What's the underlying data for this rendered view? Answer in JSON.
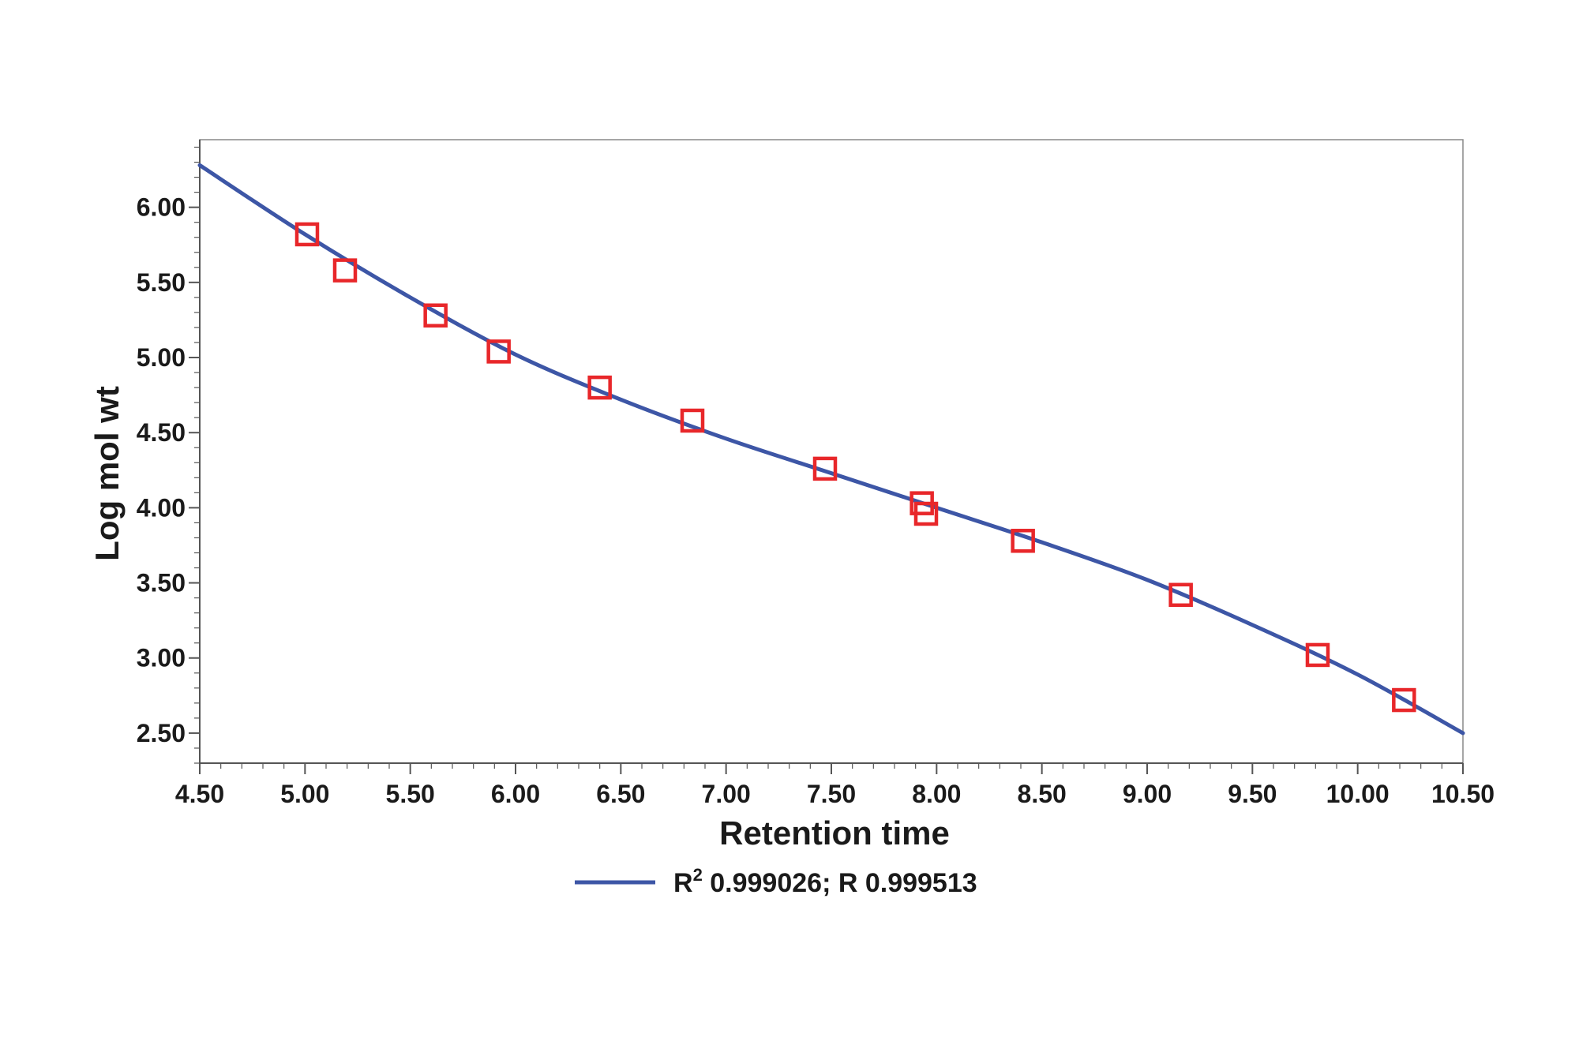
{
  "chart_data": {
    "type": "scatter",
    "xlabel": "Retention time",
    "ylabel": "Log mol wt",
    "xlim": [
      4.5,
      10.5
    ],
    "ylim": [
      2.3,
      6.45
    ],
    "xticks": [
      "4.50",
      "5.00",
      "5.50",
      "6.00",
      "6.50",
      "7.00",
      "7.50",
      "8.00",
      "8.50",
      "9.00",
      "9.50",
      "10.00",
      "10.50"
    ],
    "yticks": [
      "2.50",
      "3.00",
      "3.50",
      "4.00",
      "4.50",
      "5.00",
      "5.50",
      "6.00"
    ],
    "series": [
      {
        "kind": "markers",
        "marker": "open-square",
        "color": "#e8272a",
        "points": [
          {
            "x": 5.01,
            "y": 5.82
          },
          {
            "x": 5.19,
            "y": 5.58
          },
          {
            "x": 5.62,
            "y": 5.28
          },
          {
            "x": 5.92,
            "y": 5.04
          },
          {
            "x": 6.4,
            "y": 4.8
          },
          {
            "x": 6.84,
            "y": 4.58
          },
          {
            "x": 7.47,
            "y": 4.26
          },
          {
            "x": 7.93,
            "y": 4.03
          },
          {
            "x": 7.95,
            "y": 3.96
          },
          {
            "x": 8.41,
            "y": 3.78
          },
          {
            "x": 9.16,
            "y": 3.42
          },
          {
            "x": 9.81,
            "y": 3.02
          },
          {
            "x": 10.22,
            "y": 2.72
          }
        ]
      },
      {
        "kind": "line",
        "color": "#3d56a6",
        "points": [
          {
            "x": 4.5,
            "y": 6.28
          },
          {
            "x": 5.0,
            "y": 5.82
          },
          {
            "x": 5.5,
            "y": 5.4
          },
          {
            "x": 6.0,
            "y": 5.02
          },
          {
            "x": 6.5,
            "y": 4.72
          },
          {
            "x": 7.0,
            "y": 4.46
          },
          {
            "x": 7.5,
            "y": 4.23
          },
          {
            "x": 8.0,
            "y": 4.0
          },
          {
            "x": 8.5,
            "y": 3.77
          },
          {
            "x": 9.0,
            "y": 3.52
          },
          {
            "x": 9.5,
            "y": 3.22
          },
          {
            "x": 10.0,
            "y": 2.89
          },
          {
            "x": 10.5,
            "y": 2.5
          }
        ]
      }
    ],
    "legend": {
      "position": "bottom",
      "line_color": "#3d56a6",
      "text_prefix": "R",
      "text_superscript": "2",
      "text_suffix": " 0.999026; R 0.999513"
    }
  }
}
